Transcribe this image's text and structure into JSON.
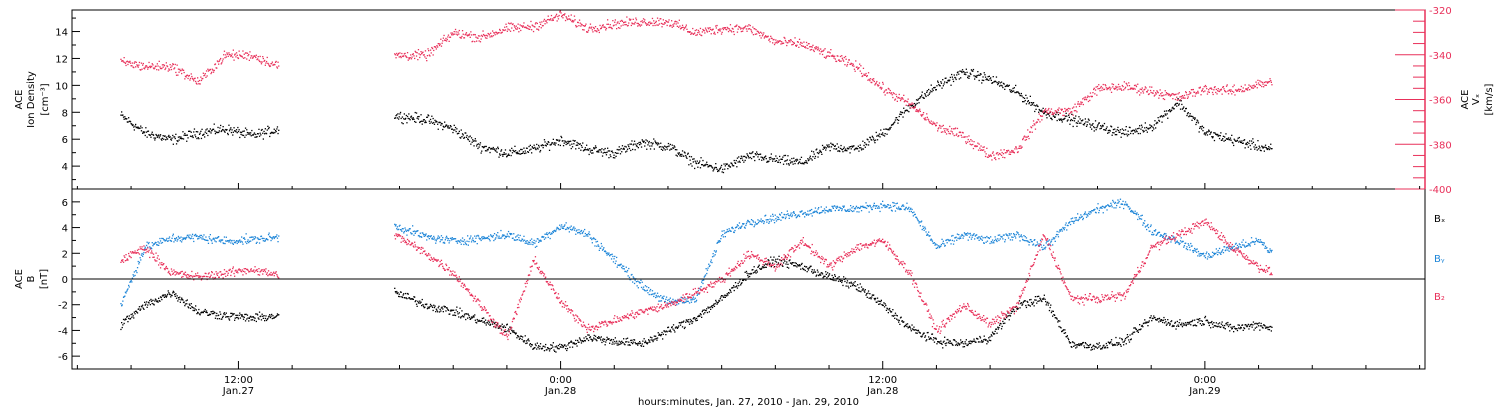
{
  "chart_data": [
    {
      "type": "scatter",
      "panel": "top",
      "ylabel_left": [
        "ACE",
        "Ion Density",
        "[cm⁻³]"
      ],
      "ylabel_right": [
        "Vₓ",
        "ACE",
        "[km/s]"
      ],
      "ylim_left": [
        2.3,
        15.6
      ],
      "ylim_right": [
        -400,
        -320
      ],
      "yticks_left": [
        4,
        6,
        8,
        10,
        12,
        14
      ],
      "yticks_right": [
        -400,
        -380,
        -360,
        -340,
        -320
      ],
      "series": [
        {
          "axis": "left",
          "color": "#000000",
          "segments": [
            {
              "x": [
                -16.4,
                -15.5,
                -14.5,
                -13.5,
                -12.5,
                -11.5,
                -10.5
              ],
              "y": [
                7.8,
                6.5,
                6.0,
                6.5,
                6.8,
                6.3,
                6.8
              ]
            },
            {
              "x": [
                -6.2,
                -5.0,
                -4.0,
                -3.0,
                -2.0,
                -1.0,
                0.0,
                1.0,
                2.0,
                3.0,
                4.0,
                5.0,
                6.0,
                7.0,
                8.0,
                9.0,
                10.0,
                11.0,
                12.0,
                13.0,
                14.0,
                15.0,
                16.0,
                17.0,
                18.0,
                19.0,
                20.0,
                21.0,
                22.0,
                23.0,
                24.0,
                25.0,
                26.0,
                26.5
              ],
              "y": [
                7.8,
                7.5,
                6.8,
                5.5,
                5.0,
                5.3,
                6.0,
                5.3,
                5.0,
                5.8,
                5.5,
                4.3,
                3.8,
                4.8,
                4.5,
                4.3,
                5.5,
                5.3,
                6.5,
                8.5,
                10.0,
                11.0,
                10.5,
                9.5,
                8.0,
                7.5,
                7.0,
                6.5,
                7.0,
                8.8,
                6.5,
                6.0,
                5.5,
                5.3
              ]
            }
          ]
        },
        {
          "axis": "right",
          "color": "#e8305a",
          "segments": [
            {
              "x": [
                -16.4,
                -15.5,
                -14.5,
                -13.5,
                -12.5,
                -11.5,
                -10.5
              ],
              "y": [
                -343,
                -345,
                -345,
                -352,
                -340,
                -340,
                -345
              ]
            },
            {
              "x": [
                -6.2,
                -5.0,
                -4.0,
                -3.0,
                -2.0,
                -1.0,
                0.0,
                1.0,
                2.0,
                3.0,
                4.0,
                5.0,
                6.0,
                7.0,
                8.0,
                9.0,
                10.0,
                11.0,
                12.0,
                13.0,
                14.0,
                15.0,
                16.0,
                17.0,
                18.0,
                19.0,
                20.0,
                21.0,
                22.0,
                23.0,
                24.0,
                25.0,
                26.0,
                26.5
              ],
              "y": [
                -340,
                -340,
                -330,
                -332,
                -328,
                -327,
                -322,
                -328,
                -326,
                -325,
                -325,
                -330,
                -328,
                -328,
                -334,
                -335,
                -340,
                -345,
                -355,
                -362,
                -372,
                -376,
                -385,
                -382,
                -365,
                -365,
                -355,
                -354,
                -356,
                -359,
                -355,
                -356,
                -353,
                -352
              ]
            }
          ]
        }
      ]
    },
    {
      "type": "scatter",
      "panel": "bottom",
      "ylabel_left": [
        "ACE",
        "B",
        "[nT]"
      ],
      "ylim": [
        -7.0,
        7.0
      ],
      "yticks": [
        -6,
        -4,
        -2,
        0,
        2,
        4,
        6
      ],
      "zero_line": true,
      "xlabel": "hours:minutes, Jan. 27, 2010 - Jan. 29, 2010",
      "xlim": [
        -18.2,
        32.2
      ],
      "xticks": [
        {
          "value": -12,
          "label": "12:00",
          "sublabel": "Jan.27"
        },
        {
          "value": 0,
          "label": "0:00",
          "sublabel": "Jan.28"
        },
        {
          "value": 12,
          "label": "12:00",
          "sublabel": "Jan.28"
        },
        {
          "value": 24,
          "label": "0:00",
          "sublabel": "Jan.29"
        }
      ],
      "legend": [
        {
          "name": "Bₓ",
          "color": "#000000"
        },
        {
          "name": "Bᵧ",
          "color": "#1e86d8"
        },
        {
          "name": "B₂",
          "color": "#e8305a"
        }
      ],
      "series": [
        {
          "name": "Bₓ",
          "color": "#000000",
          "segments": [
            {
              "x": [
                -16.4,
                -15.5,
                -14.5,
                -13.5,
                -12.5,
                -11.5,
                -10.5
              ],
              "y": [
                -3.5,
                -2.0,
                -1.0,
                -2.5,
                -2.8,
                -3.0,
                -2.8
              ]
            },
            {
              "x": [
                -6.2,
                -5.0,
                -4.0,
                -3.0,
                -2.0,
                -1.0,
                0.0,
                1.0,
                2.0,
                3.0,
                4.0,
                5.0,
                6.0,
                7.0,
                8.0,
                9.0,
                10.0,
                11.0,
                12.0,
                13.0,
                14.0,
                15.0,
                16.0,
                17.0,
                18.0,
                19.0,
                20.0,
                21.0,
                22.0,
                23.0,
                24.0,
                25.0,
                26.0,
                26.5
              ],
              "y": [
                -1.0,
                -2.0,
                -2.5,
                -3.2,
                -3.8,
                -5.2,
                -5.3,
                -4.5,
                -4.8,
                -5.0,
                -4.0,
                -3.0,
                -1.5,
                0.5,
                1.5,
                1.0,
                0.2,
                -0.5,
                -2.0,
                -3.8,
                -4.8,
                -5.0,
                -4.5,
                -2.0,
                -1.5,
                -5.0,
                -5.2,
                -4.8,
                -3.0,
                -3.5,
                -3.2,
                -3.8,
                -3.5,
                -3.8
              ]
            }
          ]
        },
        {
          "name": "Bᵧ",
          "color": "#1e86d8",
          "segments": [
            {
              "x": [
                -16.4,
                -15.5,
                -14.5,
                -13.5,
                -12.5,
                -11.5,
                -10.5
              ],
              "y": [
                -2.0,
                2.5,
                3.2,
                3.3,
                3.0,
                3.1,
                3.3
              ]
            },
            {
              "x": [
                -6.2,
                -5.0,
                -4.0,
                -3.0,
                -2.0,
                -1.0,
                0.0,
                1.0,
                2.0,
                3.0,
                4.0,
                5.0,
                6.0,
                7.0,
                8.0,
                9.0,
                10.0,
                11.0,
                12.0,
                13.0,
                14.0,
                15.0,
                16.0,
                17.0,
                18.0,
                19.0,
                20.0,
                21.0,
                22.0,
                23.0,
                24.0,
                25.0,
                26.0,
                26.5
              ],
              "y": [
                4.2,
                3.3,
                3.0,
                3.2,
                3.5,
                2.8,
                4.2,
                3.5,
                1.5,
                -0.5,
                -1.8,
                -1.5,
                3.5,
                4.5,
                4.8,
                5.2,
                5.5,
                5.5,
                5.8,
                5.5,
                2.5,
                3.5,
                3.0,
                3.5,
                2.5,
                4.5,
                5.5,
                6.0,
                3.8,
                3.0,
                1.8,
                2.5,
                3.0,
                2.0
              ]
            }
          ]
        },
        {
          "name": "B₂",
          "color": "#e8305a",
          "segments": [
            {
              "x": [
                -16.4,
                -15.5,
                -14.5,
                -13.5,
                -12.5,
                -11.5,
                -10.5
              ],
              "y": [
                1.5,
                2.5,
                0.5,
                0.2,
                0.5,
                0.8,
                0.3
              ]
            },
            {
              "x": [
                -6.2,
                -5.0,
                -4.0,
                -3.0,
                -2.0,
                -1.0,
                0.0,
                1.0,
                2.0,
                3.0,
                4.0,
                5.0,
                6.0,
                7.0,
                8.0,
                9.0,
                10.0,
                11.0,
                12.0,
                13.0,
                14.0,
                15.0,
                16.0,
                17.0,
                18.0,
                19.0,
                20.0,
                21.0,
                22.0,
                23.0,
                24.0,
                25.0,
                26.0,
                26.5
              ],
              "y": [
                3.5,
                2.0,
                0.5,
                -2.0,
                -4.5,
                1.5,
                -1.8,
                -3.8,
                -3.2,
                -2.5,
                -2.0,
                -1.0,
                0.0,
                2.0,
                1.0,
                3.0,
                1.0,
                2.5,
                3.0,
                0.5,
                -4.0,
                -2.0,
                -3.5,
                -2.0,
                3.5,
                -1.5,
                -1.5,
                -1.2,
                2.5,
                3.5,
                4.5,
                2.5,
                1.0,
                0.5
              ]
            }
          ]
        }
      ]
    }
  ]
}
